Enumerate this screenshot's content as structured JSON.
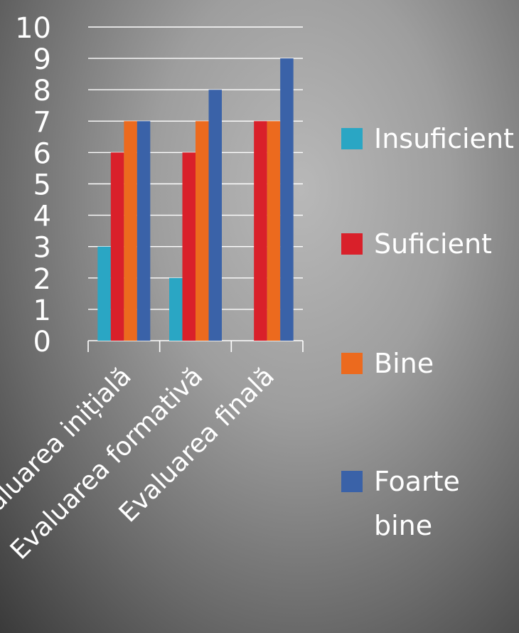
{
  "chart_data": {
    "type": "bar",
    "categories": [
      "Evaluarea inițială",
      "Evaluarea formativă",
      "Evaluarea finală"
    ],
    "series": [
      {
        "name": "Insuficient",
        "values": [
          3,
          2,
          0
        ],
        "color": "#2aa6c4"
      },
      {
        "name": "Suficient",
        "values": [
          6,
          6,
          7
        ],
        "color": "#d9202a"
      },
      {
        "name": "Bine",
        "values": [
          7,
          7,
          7
        ],
        "color": "#ec6a1e"
      },
      {
        "name": "Foarte bine",
        "values": [
          7,
          8,
          9
        ],
        "color": "#3a62a8"
      }
    ],
    "ylim": [
      0,
      10
    ],
    "yticks": [
      0,
      1,
      2,
      3,
      4,
      5,
      6,
      7,
      8,
      9,
      10
    ],
    "grid": true,
    "legend": "right",
    "colors": {
      "axis": "#ffffff",
      "text": "#ffffff"
    }
  }
}
